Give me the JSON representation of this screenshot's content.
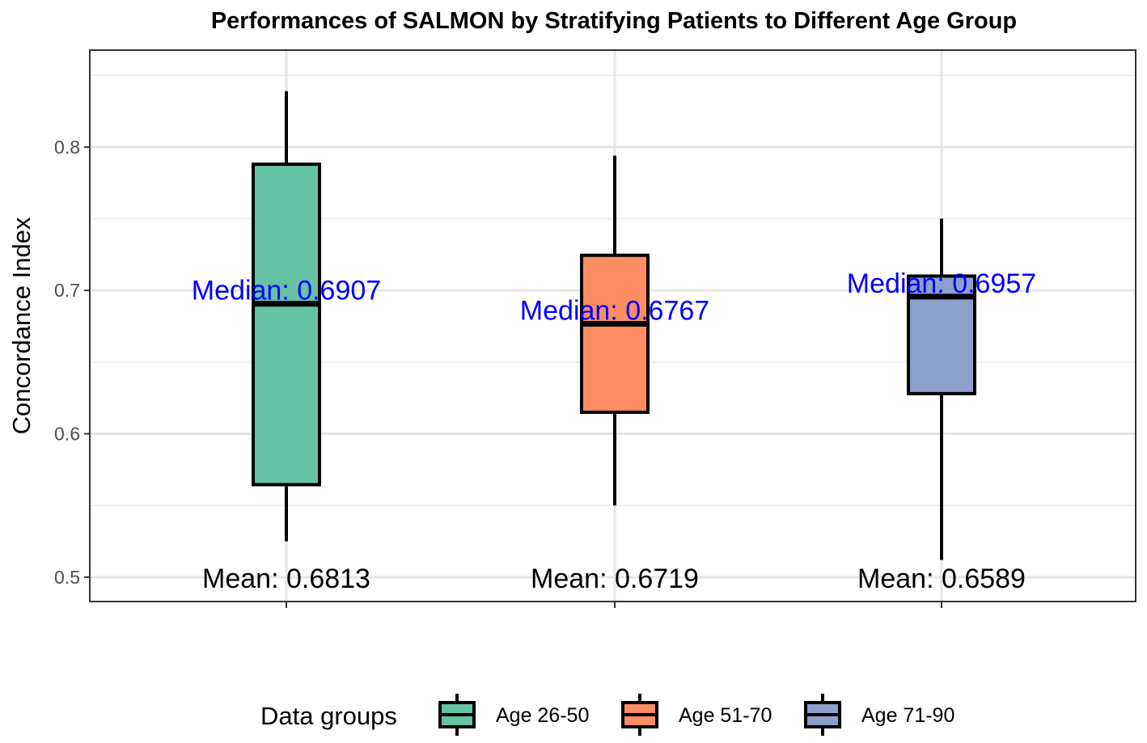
{
  "chart_data": {
    "type": "box",
    "title": "Performances of SALMON by Stratifying Patients to Different Age Group",
    "xlabel": "",
    "ylabel": "Concordance Index",
    "ylim": [
      0.483,
      0.8676
    ],
    "yticks": [
      0.5,
      0.6,
      0.7,
      0.8
    ],
    "ytick_labels": [
      "0.5",
      "0.6",
      "0.7",
      "0.8"
    ],
    "grid": true,
    "legend": {
      "title": "Data groups",
      "position": "bottom"
    },
    "categories": [
      "Age 26-50",
      "Age 51-70",
      "Age 71-90"
    ],
    "colors": [
      "#66c2a5",
      "#fc8d62",
      "#8da0cb"
    ],
    "series": [
      {
        "name": "Age 26-50",
        "whisker_low": 0.525,
        "q1": 0.5645,
        "median": 0.6907,
        "q3": 0.788,
        "whisker_high": 0.839,
        "mean": 0.6813,
        "median_label": "Median: 0.6907",
        "mean_label": "Mean: 0.6813"
      },
      {
        "name": "Age 51-70",
        "whisker_low": 0.55,
        "q1": 0.615,
        "median": 0.6767,
        "q3": 0.7245,
        "whisker_high": 0.794,
        "mean": 0.6719,
        "median_label": "Median: 0.6767",
        "mean_label": "Mean: 0.6719"
      },
      {
        "name": "Age 71-90",
        "whisker_low": 0.512,
        "q1": 0.628,
        "median": 0.6957,
        "q3": 0.71,
        "whisker_high": 0.75,
        "mean": 0.6589,
        "median_label": "Median: 0.6957",
        "mean_label": "Mean: 0.6589"
      }
    ],
    "annotation_color": "#0000ff"
  }
}
